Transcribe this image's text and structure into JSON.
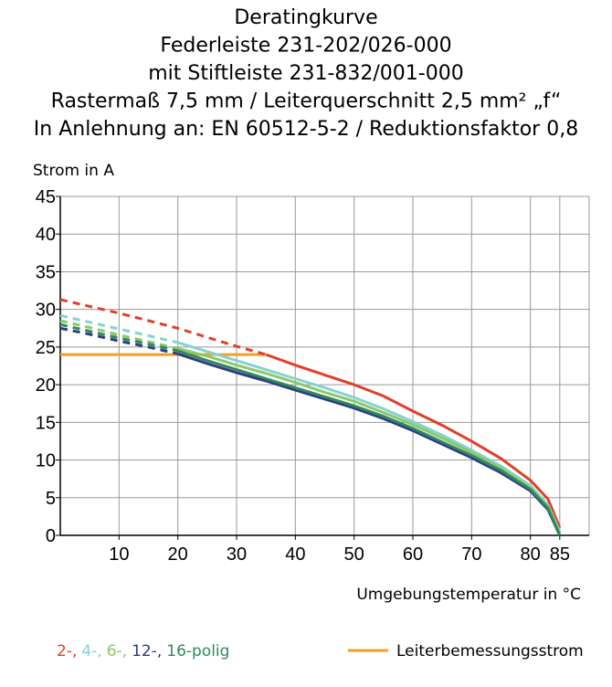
{
  "chart_data": {
    "type": "line",
    "title": [
      "Deratingkurve",
      "Federleiste 231-202/026-000",
      "mit Stiftleiste 231-832/001-000",
      "Rastermaß 7,5 mm / Leiterquerschnitt 2,5 mm² „f“",
      "In Anlehnung an: EN 60512-5-2 / Reduktionsfaktor 0,8"
    ],
    "y_label": "Strom in A",
    "x_label": "Umgebungstemperatur in °C",
    "xlim": [
      0,
      90
    ],
    "xticks": [
      10,
      20,
      30,
      40,
      50,
      60,
      70,
      80,
      85
    ],
    "ylim": [
      0,
      45
    ],
    "yticks": [
      0,
      5,
      10,
      15,
      20,
      25,
      30,
      35,
      40,
      45
    ],
    "grid": true,
    "x": [
      0,
      5,
      10,
      15,
      20,
      25,
      30,
      35,
      40,
      45,
      50,
      55,
      60,
      65,
      70,
      75,
      80,
      83,
      85
    ],
    "series": [
      {
        "name": "Leiterbemessungsstrom",
        "color": "#f5a020",
        "values": [
          24,
          24,
          24,
          24,
          24,
          24,
          24,
          24,
          null,
          null,
          null,
          null,
          null,
          null,
          null,
          null,
          null,
          null,
          null
        ]
      },
      {
        "name": "2-,",
        "color": "#e0402a",
        "dashed_values": [
          31.3,
          30.4,
          29.5,
          28.5,
          27.5,
          26.3,
          25.1,
          24.0,
          null,
          null,
          null,
          null,
          null,
          null,
          null,
          null,
          null,
          null,
          null
        ],
        "values": [
          null,
          null,
          null,
          null,
          null,
          null,
          null,
          24.0,
          22.6,
          21.3,
          20.0,
          18.5,
          16.5,
          14.6,
          12.5,
          10.2,
          7.3,
          4.8,
          1
        ]
      },
      {
        "name": "4-,",
        "color": "#86d2d2",
        "dashed_values": [
          29.2,
          28.3,
          27.4,
          26.5,
          25.6,
          null,
          null,
          null,
          null,
          null,
          null,
          null,
          null,
          null,
          null,
          null,
          null,
          null,
          null
        ],
        "values": [
          null,
          null,
          null,
          null,
          25.6,
          24.4,
          23.2,
          22.0,
          20.8,
          19.6,
          18.3,
          16.8,
          15.1,
          13.3,
          11.3,
          9.2,
          6.6,
          4,
          0.5
        ]
      },
      {
        "name": "6-,",
        "color": "#8cc86a",
        "dashed_values": [
          28.5,
          27.6,
          26.6,
          25.7,
          24.8,
          null,
          null,
          null,
          null,
          null,
          null,
          null,
          null,
          null,
          null,
          null,
          null,
          null,
          null
        ],
        "values": [
          null,
          null,
          null,
          null,
          24.8,
          23.8,
          22.6,
          21.5,
          20.3,
          19.0,
          17.8,
          16.3,
          14.7,
          12.9,
          11.0,
          8.9,
          6.3,
          3.8,
          0.3
        ]
      },
      {
        "name": "12-,",
        "color": "#2e3a8c",
        "dashed_values": [
          27.5,
          26.7,
          25.8,
          25.0,
          24.1,
          null,
          null,
          null,
          null,
          null,
          null,
          null,
          null,
          null,
          null,
          null,
          null,
          null,
          null
        ],
        "values": [
          null,
          null,
          null,
          null,
          24.1,
          22.8,
          21.6,
          20.5,
          19.3,
          18.1,
          16.9,
          15.5,
          13.9,
          12.1,
          10.3,
          8.3,
          5.9,
          3.4,
          0
        ]
      },
      {
        "name": "16-polig",
        "color": "#2e8a5a",
        "dashed_values": [
          28.0,
          27.1,
          26.2,
          25.4,
          24.5,
          null,
          null,
          null,
          null,
          null,
          null,
          null,
          null,
          null,
          null,
          null,
          null,
          null,
          null
        ],
        "values": [
          null,
          null,
          null,
          null,
          24.5,
          23.2,
          22.0,
          20.8,
          19.6,
          18.4,
          17.2,
          15.8,
          14.2,
          12.4,
          10.6,
          8.6,
          6.1,
          3.6,
          0
        ]
      }
    ]
  }
}
